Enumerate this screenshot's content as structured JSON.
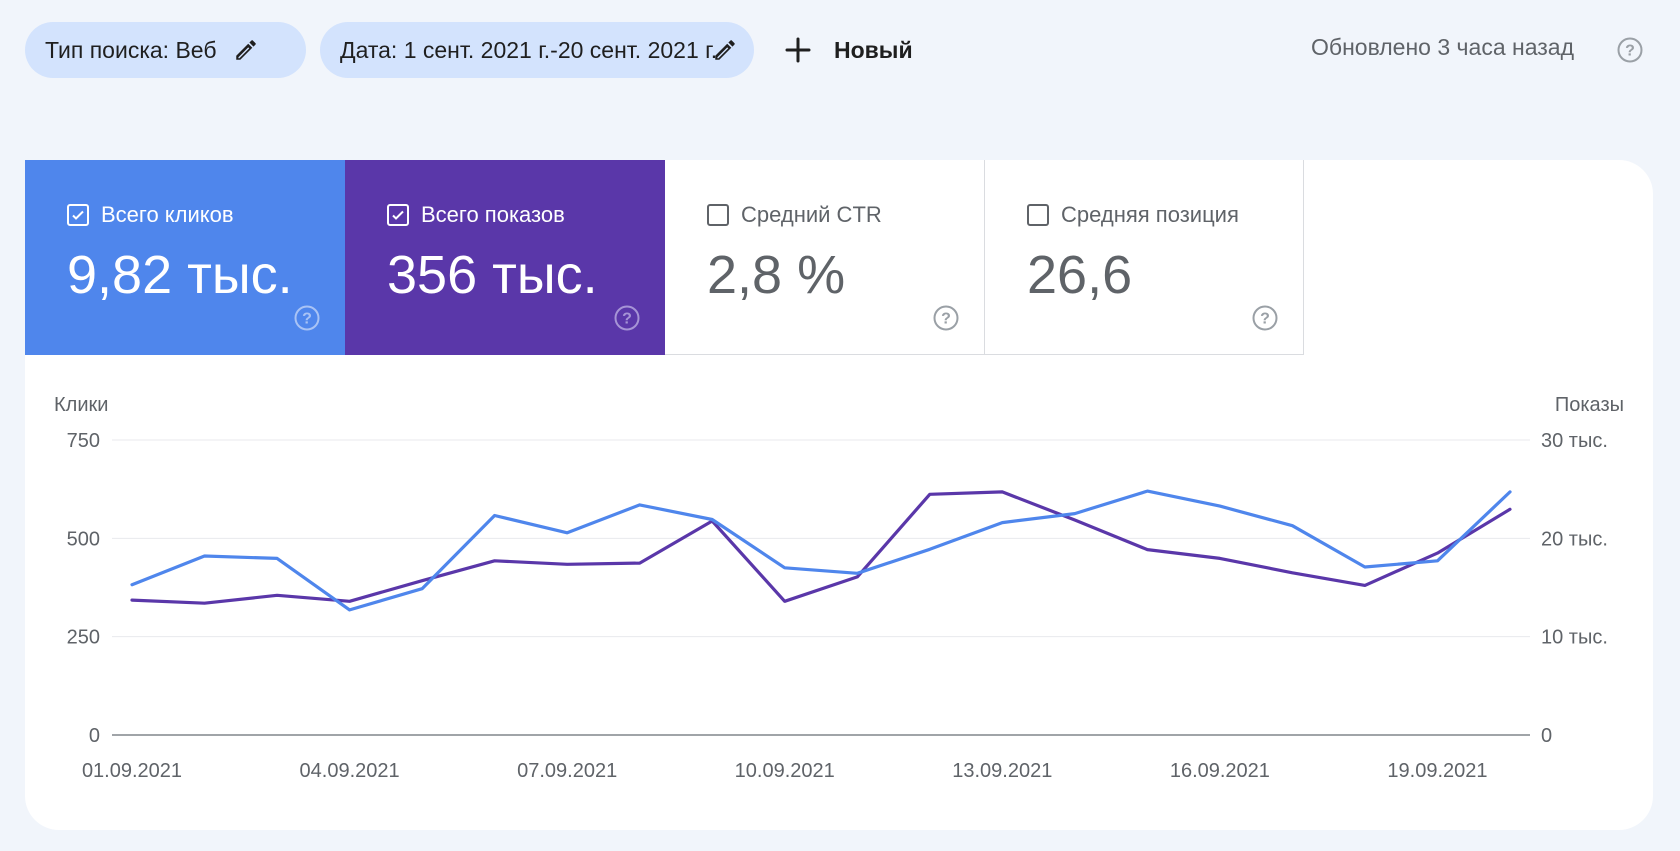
{
  "filters": {
    "search_type": {
      "label": "Тип поиска: Веб"
    },
    "date": {
      "label": "Дата: 1 сент. 2021 г.-20 сент. 2021 г."
    },
    "new_label": "Новый"
  },
  "status": {
    "updated": "Обновлено 3 часа назад"
  },
  "colors": {
    "clicks": "#4f86ec",
    "impressions": "#5a37a9",
    "chip": "#d3e3fd"
  },
  "metrics": [
    {
      "label": "Всего кликов",
      "value": "9,82 тыс.",
      "checked": true
    },
    {
      "label": "Всего показов",
      "value": "356 тыс.",
      "checked": true
    },
    {
      "label": "Средний CTR",
      "value": "2,8 %",
      "checked": false
    },
    {
      "label": "Средняя позиция",
      "value": "26,6",
      "checked": false
    }
  ],
  "chart_data": {
    "type": "line",
    "ylabel_left": "Клики",
    "ylabel_right": "Показы",
    "y_left_ticks": [
      "750",
      "500",
      "250",
      "0"
    ],
    "y_right_ticks": [
      "30 тыс.",
      "20 тыс.",
      "10 тыс.",
      "0"
    ],
    "ylim_left": [
      0,
      750
    ],
    "ylim_right": [
      0,
      30000
    ],
    "x_tick_labels": [
      "01.09.2021",
      "04.09.2021",
      "07.09.2021",
      "10.09.2021",
      "13.09.2021",
      "16.09.2021",
      "19.09.2021"
    ],
    "x": [
      "01.09.2021",
      "02.09.2021",
      "03.09.2021",
      "04.09.2021",
      "05.09.2021",
      "06.09.2021",
      "07.09.2021",
      "08.09.2021",
      "09.09.2021",
      "10.09.2021",
      "11.09.2021",
      "12.09.2021",
      "13.09.2021",
      "14.09.2021",
      "15.09.2021",
      "16.09.2021",
      "17.09.2021",
      "18.09.2021",
      "19.09.2021",
      "20.09.2021"
    ],
    "grid": true,
    "series": [
      {
        "name": "Клики",
        "axis": "left",
        "color": "#4f86ec",
        "values": [
          382,
          455,
          449,
          318,
          372,
          558,
          514,
          585,
          548,
          425,
          411,
          472,
          540,
          563,
          620,
          582,
          532,
          427,
          443,
          618
        ]
      },
      {
        "name": "Показы",
        "axis": "right",
        "color": "#5a37a9",
        "values": [
          13720,
          13400,
          14210,
          13600,
          15690,
          17720,
          17360,
          17480,
          21760,
          13600,
          16080,
          24480,
          24720,
          21860,
          18850,
          17960,
          16500,
          15210,
          18500,
          22950
        ]
      }
    ]
  }
}
